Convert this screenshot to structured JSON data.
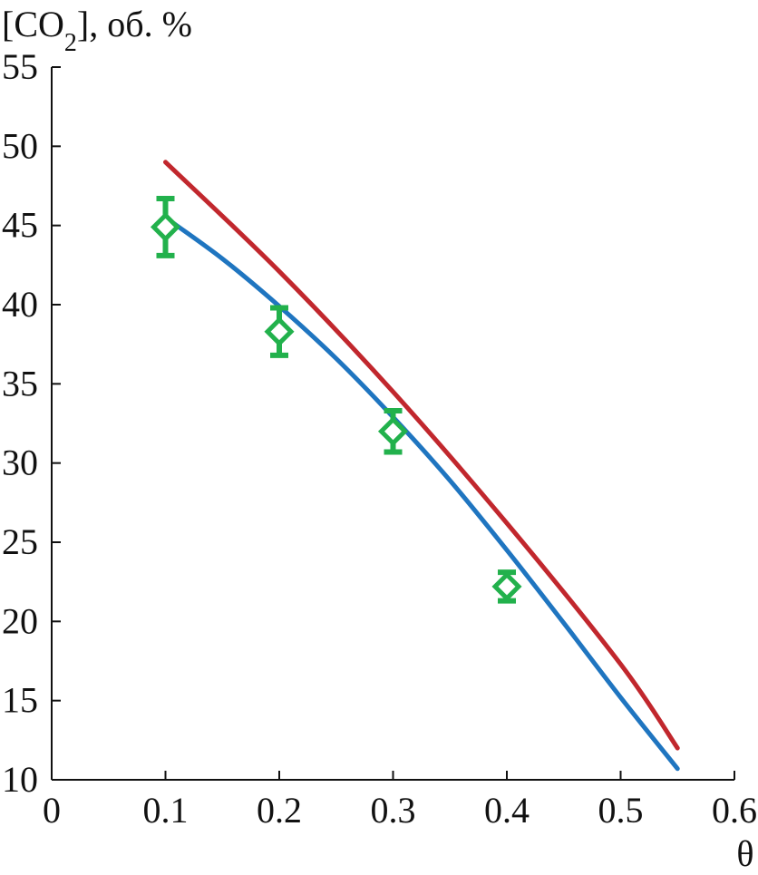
{
  "chart_data": {
    "type": "line",
    "ylabel": "[CO2], об. %",
    "ylabel_main": "[CO",
    "ylabel_sub": "2",
    "ylabel_tail": "], об. %",
    "xlabel": "θ",
    "xlim": [
      0,
      0.6
    ],
    "ylim": [
      10,
      55
    ],
    "x_ticks": [
      "0",
      "0.1",
      "0.2",
      "0.3",
      "0.4",
      "0.5",
      "0.6"
    ],
    "y_ticks": [
      "10",
      "15",
      "20",
      "25",
      "30",
      "35",
      "40",
      "45",
      "50",
      "55"
    ],
    "grid": false,
    "series": [
      {
        "kind": "line",
        "color": "#c1272d",
        "x": [
          0.1,
          0.2,
          0.3,
          0.4,
          0.5,
          0.55
        ],
        "y": [
          49.0,
          42.1,
          34.5,
          26.2,
          17.3,
          12.0
        ]
      },
      {
        "kind": "line",
        "color": "#1f75c0",
        "x": [
          0.1,
          0.15,
          0.2,
          0.25,
          0.3,
          0.35,
          0.4,
          0.45,
          0.5,
          0.55
        ],
        "y": [
          45.5,
          42.9,
          39.9,
          36.6,
          32.9,
          28.9,
          24.5,
          19.9,
          15.2,
          10.7
        ]
      },
      {
        "kind": "scatter",
        "marker": "diamond",
        "color": "#22b14c",
        "x": [
          0.1,
          0.2,
          0.3,
          0.4
        ],
        "y": [
          44.9,
          38.3,
          32.0,
          22.2
        ],
        "err": [
          1.8,
          1.5,
          1.3,
          0.9
        ]
      }
    ]
  }
}
